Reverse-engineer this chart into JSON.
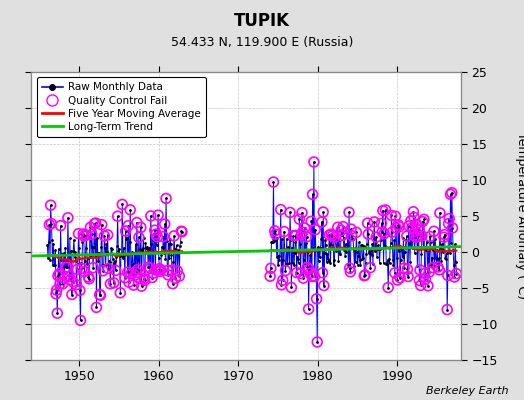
{
  "title": "TUPIK",
  "subtitle": "54.433 N, 119.900 E (Russia)",
  "ylabel": "Temperature Anomaly (°C)",
  "credit": "Berkeley Earth",
  "xlim": [
    1944,
    1998
  ],
  "ylim": [
    -15,
    25
  ],
  "yticks": [
    -15,
    -10,
    -5,
    0,
    5,
    10,
    15,
    20,
    25
  ],
  "xticks": [
    1950,
    1960,
    1970,
    1980,
    1990
  ],
  "background_color": "#e0e0e0",
  "plot_bg_color": "#ffffff",
  "grid_color": "#b0b0b0",
  "raw_color": "#0000ff",
  "qc_color": "#ff00ff",
  "moving_avg_color": "#ff0000",
  "trend_color": "#00cc00",
  "period1_start": 1946.0,
  "period1_end": 1963.0,
  "period2_start": 1974.0,
  "period2_end": 1997.5,
  "seed": 42,
  "noise1": 2.8,
  "noise2": 2.5,
  "trend_x": [
    1944,
    1998
  ],
  "trend_y": [
    -0.55,
    0.75
  ]
}
